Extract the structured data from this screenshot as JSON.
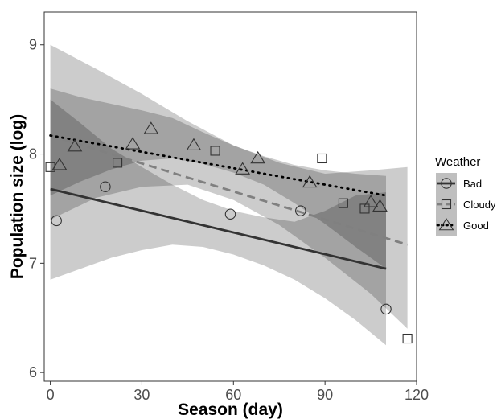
{
  "chart_data": {
    "type": "scatter",
    "xlabel": "Season (day)",
    "ylabel": "Population size (log)",
    "xlim": [
      -2,
      120
    ],
    "ylim": [
      5.92,
      9.3
    ],
    "xticks": [
      0,
      30,
      60,
      90,
      120
    ],
    "yticks": [
      6,
      7,
      8,
      9
    ],
    "grid": false,
    "legend": {
      "title": "Weather",
      "placement": "right",
      "entries": [
        "Bad",
        "Cloudy",
        "Good"
      ]
    },
    "series": [
      {
        "name": "Bad",
        "marker": "circle",
        "line_style": "solid",
        "color": "#333333",
        "points": [
          [
            2,
            7.39
          ],
          [
            18,
            7.7
          ],
          [
            59,
            7.45
          ],
          [
            82,
            7.48
          ],
          [
            110,
            6.58
          ]
        ],
        "fit": {
          "x": [
            0,
            110
          ],
          "y": [
            7.68,
            6.95
          ]
        },
        "ci": {
          "x": [
            0,
            10,
            20,
            30,
            40,
            50,
            60,
            70,
            80,
            90,
            100,
            110
          ],
          "lower": [
            6.85,
            6.95,
            7.05,
            7.12,
            7.17,
            7.15,
            7.08,
            6.98,
            6.85,
            6.68,
            6.48,
            6.25
          ],
          "upper": [
            8.5,
            8.28,
            8.05,
            7.88,
            7.72,
            7.58,
            7.48,
            7.42,
            7.38,
            7.48,
            7.62,
            7.65
          ]
        }
      },
      {
        "name": "Cloudy",
        "marker": "square",
        "line_style": "dashed",
        "color": "#808080",
        "points": [
          [
            0,
            7.88
          ],
          [
            22,
            7.92
          ],
          [
            54,
            8.03
          ],
          [
            89,
            7.96
          ],
          [
            96,
            7.55
          ],
          [
            103,
            7.5
          ],
          [
            117,
            6.31
          ]
        ],
        "fit": {
          "x": [
            0,
            117
          ],
          "y": [
            8.17,
            7.17
          ]
        },
        "ci": {
          "x": [
            0,
            15,
            30,
            45,
            60,
            75,
            90,
            105,
            117
          ],
          "lower": [
            7.4,
            7.6,
            7.7,
            7.72,
            7.58,
            7.35,
            7.05,
            6.72,
            6.4
          ],
          "upper": [
            9.0,
            8.78,
            8.55,
            8.3,
            8.08,
            7.92,
            7.82,
            7.85,
            7.88
          ]
        }
      },
      {
        "name": "Good",
        "marker": "triangle",
        "line_style": "dotted",
        "color": "#000000",
        "points": [
          [
            3,
            7.9
          ],
          [
            8,
            8.07
          ],
          [
            27,
            8.09
          ],
          [
            33,
            8.23
          ],
          [
            47,
            8.08
          ],
          [
            63,
            7.86
          ],
          [
            68,
            7.96
          ],
          [
            85,
            7.74
          ],
          [
            105,
            7.56
          ],
          [
            108,
            7.52
          ]
        ],
        "fit": {
          "x": [
            0,
            110
          ],
          "y": [
            8.17,
            7.62
          ]
        },
        "ci": {
          "x": [
            0,
            10,
            20,
            30,
            40,
            50,
            60,
            70,
            80,
            90,
            100,
            110
          ],
          "lower": [
            7.62,
            7.75,
            7.86,
            7.94,
            7.96,
            7.91,
            7.83,
            7.72,
            7.55,
            7.36,
            7.15,
            6.95
          ],
          "upper": [
            8.6,
            8.52,
            8.46,
            8.4,
            8.33,
            8.2,
            8.08,
            7.98,
            7.9,
            7.85,
            7.82,
            7.8
          ]
        }
      }
    ]
  }
}
